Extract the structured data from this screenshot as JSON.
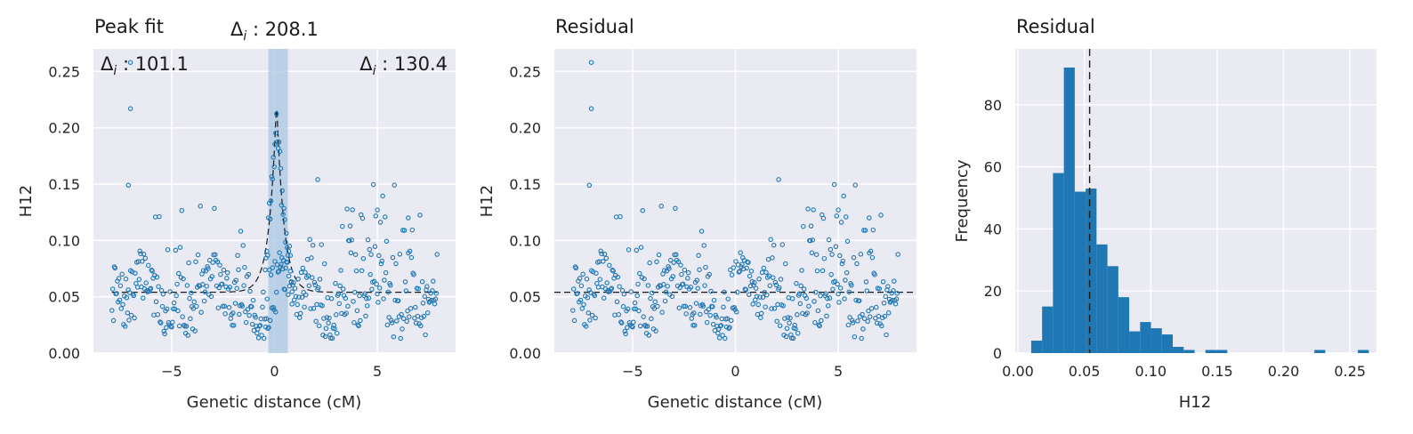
{
  "colors": {
    "point": "#1f77b4",
    "bar": "#1f77b4",
    "band": "#aac7e3",
    "panel_bg": "#eaeaf2",
    "dash": "#1a1a1a"
  },
  "chart_data": [
    {
      "type": "scatter",
      "title": "Peak fit",
      "xlabel": "Genetic distance (cM)",
      "ylabel": "H12",
      "xlim": [
        -8.8,
        8.8
      ],
      "ylim": [
        0,
        0.27
      ],
      "xticks": [
        -5,
        0,
        5
      ],
      "yticks": [
        0.0,
        0.05,
        0.1,
        0.15,
        0.2,
        0.25
      ],
      "annotations": [
        {
          "text_prefix": "Δ",
          "sub": "i",
          "text": " : 101.1",
          "position": "top-left"
        },
        {
          "text_prefix": "Δ",
          "sub": "i",
          "text": " : 208.1",
          "position": "top-center"
        },
        {
          "text_prefix": "Δ",
          "sub": "i",
          "text": " : 130.4",
          "position": "top-right"
        }
      ],
      "peak_band": [
        -0.3,
        0.65
      ],
      "baseline": 0.054,
      "fit_peak": {
        "center": 0.1,
        "height": 0.225,
        "width": 0.35
      },
      "points": {
        "x_range": [
          -7.9,
          7.9
        ],
        "n": 420,
        "seed": 7
      }
    },
    {
      "type": "scatter",
      "title": "Residual",
      "xlabel": "Genetic distance (cM)",
      "ylabel": "H12",
      "xlim": [
        -8.8,
        8.8
      ],
      "ylim": [
        0,
        0.27
      ],
      "xticks": [
        -5,
        0,
        5
      ],
      "yticks": [
        0.0,
        0.05,
        0.1,
        0.15,
        0.2,
        0.25
      ],
      "baseline": 0.054,
      "points": {
        "x_range": [
          -7.9,
          7.9
        ],
        "n": 420,
        "seed": 7
      }
    },
    {
      "type": "bar",
      "title": "Residual",
      "xlabel": "H12",
      "ylabel": "Frequency",
      "xlim": [
        -0.002,
        0.27
      ],
      "ylim": [
        0,
        98
      ],
      "xticks": [
        0.0,
        0.05,
        0.1,
        0.15,
        0.2,
        0.25
      ],
      "yticks": [
        0,
        20,
        40,
        60,
        80
      ],
      "bin_start": 0.01,
      "bin_width": 0.0082,
      "values": [
        4,
        15,
        58,
        92,
        52,
        53,
        35,
        28,
        18,
        7,
        10,
        8,
        6,
        2,
        1,
        0,
        1,
        1,
        0,
        0,
        0,
        0,
        0,
        0,
        0,
        0,
        1,
        0,
        0,
        0,
        1
      ],
      "vline": 0.054
    }
  ]
}
